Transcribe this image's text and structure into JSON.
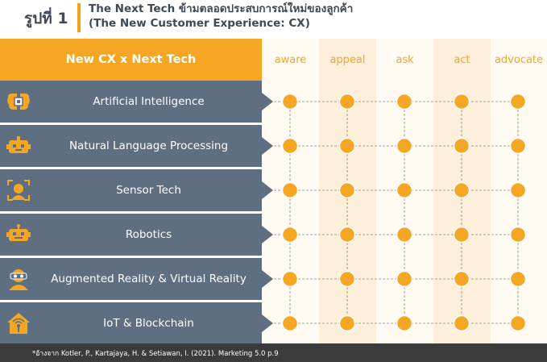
{
  "figure": {
    "label": "รูปที่ 1",
    "title_line1": "The Next Tech ข้ามตลอดประสบการณ์ใหม่ของลูกค้า",
    "title_line2": "(The New Customer Experience: CX)"
  },
  "header": {
    "title": "New CX x Next Tech",
    "stages": [
      "aware",
      "appeal",
      "ask",
      "act",
      "advocate"
    ]
  },
  "rows": [
    {
      "label": "Artificial Intelligence",
      "icon": "brain-chip-icon"
    },
    {
      "label": "Natural Language Processing",
      "icon": "chat-robot-icon"
    },
    {
      "label": "Sensor Tech",
      "icon": "face-scan-icon"
    },
    {
      "label": "Robotics",
      "icon": "robot-icon"
    },
    {
      "label": "Augmented Reality & Virtual Reality",
      "icon": "vr-headset-icon"
    },
    {
      "label": "IoT & Blockchain",
      "icon": "smart-home-icon"
    }
  ],
  "footer": {
    "source": "*อ้างจาก Kotler, P., Kartajaya, H. & Setiawan, I. (2021). Marketing 5.0    p.9"
  },
  "colors": {
    "accent": "#f5a623",
    "row": "#5d6f80",
    "node_fill": "#f5a623",
    "node_stroke": "#ffffff",
    "line": "#8a8a8a",
    "footer": "#3b3b3b"
  }
}
